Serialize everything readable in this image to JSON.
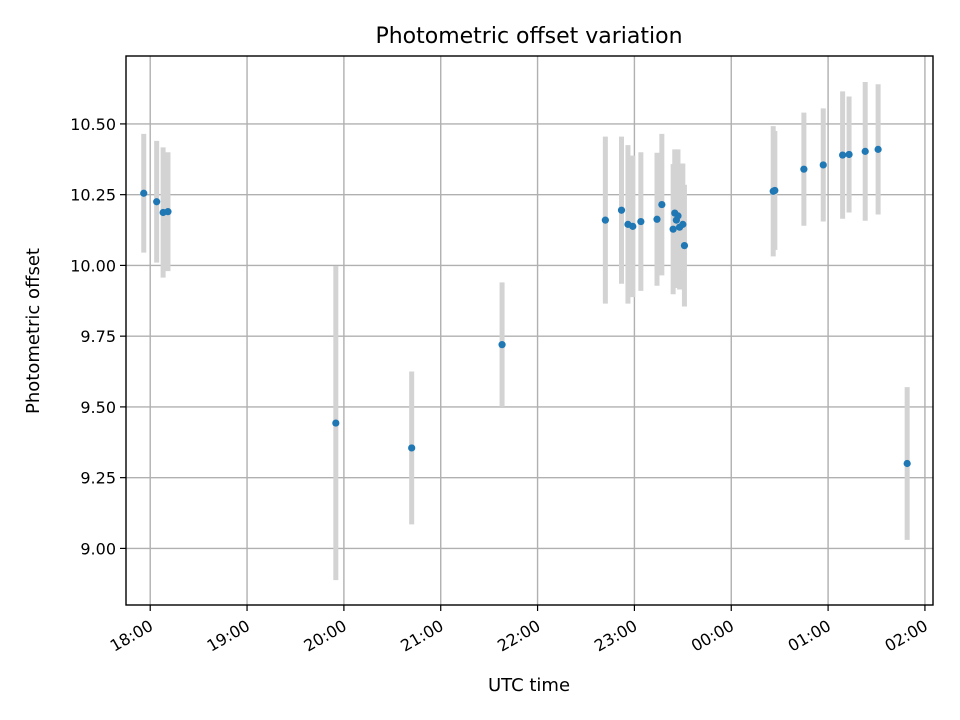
{
  "chart_data": {
    "type": "scatter",
    "title": "Photometric offset variation",
    "xlabel": "UTC time",
    "ylabel": "Photometric offset",
    "x_tick_labels": [
      "18:00",
      "19:00",
      "20:00",
      "21:00",
      "22:00",
      "23:00",
      "00:00",
      "01:00",
      "02:00"
    ],
    "y_tick_labels": [
      "9.00",
      "9.25",
      "9.50",
      "9.75",
      "10.00",
      "10.25",
      "10.50"
    ],
    "y_ticks": [
      9.0,
      9.25,
      9.5,
      9.75,
      10.0,
      10.25,
      10.5
    ],
    "ylim": [
      8.8,
      10.74
    ],
    "grid": true,
    "colors": {
      "marker": "#1f77b4",
      "errorbar": "#d3d3d3"
    },
    "points": [
      {
        "time": "17:56",
        "y": 10.255,
        "err": 0.21
      },
      {
        "time": "18:04",
        "y": 10.225,
        "err": 0.215
      },
      {
        "time": "18:08",
        "y": 10.187,
        "err": 0.23
      },
      {
        "time": "18:11",
        "y": 10.19,
        "err": 0.21
      },
      {
        "time": "19:55",
        "y": 9.443,
        "err": 0.555
      },
      {
        "time": "20:42",
        "y": 9.355,
        "err": 0.27
      },
      {
        "time": "21:38",
        "y": 9.72,
        "err": 0.22
      },
      {
        "time": "22:42",
        "y": 10.16,
        "err": 0.295
      },
      {
        "time": "22:52",
        "y": 10.195,
        "err": 0.26
      },
      {
        "time": "22:56",
        "y": 10.145,
        "err": 0.28
      },
      {
        "time": "22:59",
        "y": 10.138,
        "err": 0.25
      },
      {
        "time": "23:04",
        "y": 10.155,
        "err": 0.245
      },
      {
        "time": "23:14",
        "y": 10.163,
        "err": 0.235
      },
      {
        "time": "23:17",
        "y": 10.215,
        "err": 0.25
      },
      {
        "time": "23:24",
        "y": 10.128,
        "err": 0.23
      },
      {
        "time": "23:25",
        "y": 10.185,
        "err": 0.225
      },
      {
        "time": "23:26",
        "y": 10.16,
        "err": 0.24
      },
      {
        "time": "23:27",
        "y": 10.175,
        "err": 0.235
      },
      {
        "time": "23:28",
        "y": 10.135,
        "err": 0.22
      },
      {
        "time": "23:30",
        "y": 10.145,
        "err": 0.215
      },
      {
        "time": "23:31",
        "y": 10.07,
        "err": 0.215
      },
      {
        "time": "00:26",
        "y": 10.262,
        "err": 0.23
      },
      {
        "time": "00:27",
        "y": 10.265,
        "err": 0.21
      },
      {
        "time": "00:45",
        "y": 10.34,
        "err": 0.2
      },
      {
        "time": "00:57",
        "y": 10.355,
        "err": 0.2
      },
      {
        "time": "01:09",
        "y": 10.39,
        "err": 0.225
      },
      {
        "time": "01:13",
        "y": 10.392,
        "err": 0.205
      },
      {
        "time": "01:23",
        "y": 10.403,
        "err": 0.245
      },
      {
        "time": "01:31",
        "y": 10.41,
        "err": 0.23
      },
      {
        "time": "01:49",
        "y": 9.3,
        "err": 0.27
      }
    ]
  }
}
